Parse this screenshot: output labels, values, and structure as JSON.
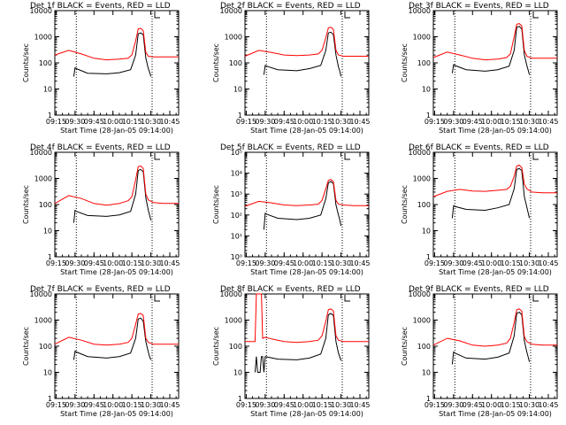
{
  "colors": {
    "events": "#000000",
    "lld": "#ff0000",
    "axes": "#000000",
    "background": "#ffffff"
  },
  "chart_data": [
    {
      "type": "line",
      "title": "Det 1f BLACK = Events, RED = LLD",
      "xlabel": "Start Time (28-Jan-05 09:14:00)",
      "ylabel": "Counts/sec",
      "ylog": true,
      "ylim": [
        1,
        10000
      ],
      "yticks_text": [
        "1",
        "10",
        "100",
        "1000",
        "10000"
      ],
      "xticks_text": [
        "09:15",
        "09:30",
        "09:45",
        "10:00",
        "10:15",
        "10:30",
        "10:45"
      ],
      "x_range": [
        "09:14",
        "10:52"
      ],
      "markers": [
        "09:31",
        "10:31"
      ],
      "grid": false,
      "series": [
        {
          "name": "BLACK = Events",
          "color": "#000000",
          "x": [
            "09:29",
            "09:30",
            "09:31",
            "09:40",
            "09:55",
            "10:05",
            "10:14",
            "10:18",
            "10:20",
            "10:22",
            "10:24",
            "10:26",
            "10:28",
            "10:29",
            "10:30"
          ],
          "values": [
            30,
            65,
            60,
            40,
            38,
            42,
            55,
            200,
            1300,
            1400,
            1200,
            150,
            60,
            45,
            30
          ]
        },
        {
          "name": "RED = LLD",
          "color": "#ff0000",
          "x": [
            "09:14",
            "09:25",
            "09:35",
            "09:45",
            "09:55",
            "10:05",
            "10:12",
            "10:15",
            "10:18",
            "10:20",
            "10:22",
            "10:24",
            "10:26",
            "10:28",
            "10:32",
            "10:40",
            "10:52"
          ],
          "values": [
            200,
            300,
            220,
            150,
            130,
            140,
            150,
            200,
            700,
            2000,
            2100,
            1700,
            250,
            180,
            170,
            170,
            170
          ]
        }
      ]
    },
    {
      "type": "line",
      "title": "Det 2f BLACK = Events, RED = LLD",
      "xlabel": "Start Time (28-Jan-05 09:14:00)",
      "ylabel": "Counts/sec",
      "ylog": true,
      "ylim": [
        1,
        10000
      ],
      "yticks_text": [
        "1",
        "10",
        "100",
        "1000",
        "10000"
      ],
      "xticks_text": [
        "09:15",
        "09:30",
        "09:45",
        "10:00",
        "10:15",
        "10:30",
        "10:45"
      ],
      "x_range": [
        "09:14",
        "10:52"
      ],
      "markers": [
        "09:31",
        "10:31"
      ],
      "grid": false,
      "series": [
        {
          "name": "BLACK = Events",
          "color": "#000000",
          "x": [
            "09:29",
            "09:30",
            "09:31",
            "09:40",
            "09:55",
            "10:05",
            "10:14",
            "10:18",
            "10:20",
            "10:22",
            "10:24",
            "10:26",
            "10:28",
            "10:29",
            "10:30"
          ],
          "values": [
            35,
            80,
            75,
            55,
            50,
            60,
            80,
            300,
            1400,
            1500,
            1200,
            200,
            70,
            50,
            30
          ]
        },
        {
          "name": "RED = LLD",
          "color": "#ff0000",
          "x": [
            "09:14",
            "09:25",
            "09:35",
            "09:45",
            "09:55",
            "10:05",
            "10:12",
            "10:15",
            "10:18",
            "10:20",
            "10:22",
            "10:24",
            "10:26",
            "10:28",
            "10:32",
            "10:40",
            "10:52"
          ],
          "values": [
            180,
            300,
            250,
            200,
            190,
            200,
            220,
            300,
            900,
            2200,
            2300,
            1900,
            300,
            200,
            180,
            180,
            180
          ]
        }
      ]
    },
    {
      "type": "line",
      "title": "Det 3f BLACK = Events, RED = LLD",
      "xlabel": "Start Time (28-Jan-05 09:14:00)",
      "ylabel": "Counts/sec",
      "ylog": true,
      "ylim": [
        1,
        10000
      ],
      "yticks_text": [
        "1",
        "10",
        "100",
        "1000",
        "10000"
      ],
      "xticks_text": [
        "09:15",
        "09:30",
        "09:45",
        "10:00",
        "10:15",
        "10:30",
        "10:45"
      ],
      "x_range": [
        "09:14",
        "10:52"
      ],
      "markers": [
        "09:31",
        "10:31"
      ],
      "grid": false,
      "series": [
        {
          "name": "BLACK = Events",
          "color": "#000000",
          "x": [
            "09:29",
            "09:30",
            "09:31",
            "09:40",
            "09:55",
            "10:05",
            "10:14",
            "10:18",
            "10:20",
            "10:22",
            "10:24",
            "10:26",
            "10:28",
            "10:29",
            "10:30"
          ],
          "values": [
            40,
            85,
            80,
            55,
            48,
            55,
            75,
            300,
            2300,
            2500,
            2000,
            200,
            80,
            55,
            35
          ]
        },
        {
          "name": "RED = LLD",
          "color": "#ff0000",
          "x": [
            "09:14",
            "09:25",
            "09:35",
            "09:45",
            "09:55",
            "10:05",
            "10:12",
            "10:15",
            "10:18",
            "10:20",
            "10:22",
            "10:24",
            "10:26",
            "10:28",
            "10:32",
            "10:40",
            "10:52"
          ],
          "values": [
            160,
            260,
            200,
            150,
            130,
            140,
            160,
            220,
            1000,
            3000,
            3200,
            2600,
            300,
            180,
            150,
            150,
            150
          ]
        }
      ]
    },
    {
      "type": "line",
      "title": "Det 4f BLACK = Events, RED = LLD",
      "xlabel": "Start Time (28-Jan-05 09:14:00)",
      "ylabel": "Counts/sec",
      "ylog": true,
      "ylim": [
        1,
        10000
      ],
      "yticks_text": [
        "1",
        "10",
        "100",
        "1000",
        "10000"
      ],
      "xticks_text": [
        "09:15",
        "09:30",
        "09:45",
        "10:00",
        "10:15",
        "10:30",
        "10:45"
      ],
      "x_range": [
        "09:14",
        "10:52"
      ],
      "markers": [
        "09:31",
        "10:31"
      ],
      "grid": false,
      "series": [
        {
          "name": "BLACK = Events",
          "color": "#000000",
          "x": [
            "09:29",
            "09:30",
            "09:31",
            "09:40",
            "09:55",
            "10:05",
            "10:14",
            "10:18",
            "10:20",
            "10:22",
            "10:24",
            "10:26",
            "10:28",
            "10:29",
            "10:30"
          ],
          "values": [
            20,
            60,
            55,
            38,
            35,
            40,
            55,
            250,
            2000,
            2200,
            1800,
            180,
            60,
            40,
            25
          ]
        },
        {
          "name": "RED = LLD",
          "color": "#ff0000",
          "x": [
            "09:14",
            "09:25",
            "09:35",
            "09:45",
            "09:55",
            "10:05",
            "10:12",
            "10:15",
            "10:18",
            "10:20",
            "10:22",
            "10:24",
            "10:26",
            "10:28",
            "10:32",
            "10:40",
            "10:52"
          ],
          "values": [
            110,
            220,
            170,
            110,
            95,
            110,
            140,
            200,
            900,
            2800,
            3000,
            2400,
            250,
            150,
            120,
            110,
            110
          ]
        }
      ]
    },
    {
      "type": "line",
      "title": "Det 5f BLACK = Events, RED = LLD",
      "xlabel": "Start Time (28-Jan-05 09:14:00)",
      "ylabel": "Counts/sec",
      "ylog": true,
      "ylim": [
        1,
        100000
      ],
      "yticks_text": [
        "10⁰",
        "10¹",
        "10²",
        "10³",
        "10⁴",
        "10⁵"
      ],
      "xticks_text": [
        "09:15",
        "09:30",
        "09:45",
        "10:00",
        "10:15",
        "10:30",
        "10:45"
      ],
      "x_range": [
        "09:14",
        "10:52"
      ],
      "markers": [
        "09:31",
        "10:31"
      ],
      "grid": false,
      "series": [
        {
          "name": "BLACK = Events",
          "color": "#000000",
          "x": [
            "09:29",
            "09:30",
            "09:31",
            "09:40",
            "09:55",
            "10:05",
            "10:14",
            "10:18",
            "10:20",
            "10:22",
            "10:24",
            "10:26",
            "10:28",
            "10:29",
            "10:30"
          ],
          "values": [
            20,
            120,
            110,
            70,
            60,
            70,
            100,
            600,
            3500,
            4000,
            3200,
            300,
            100,
            60,
            30
          ]
        },
        {
          "name": "RED = LLD",
          "color": "#ff0000",
          "x": [
            "09:14",
            "09:25",
            "09:35",
            "09:45",
            "09:55",
            "10:05",
            "10:12",
            "10:15",
            "10:18",
            "10:20",
            "10:22",
            "10:24",
            "10:26",
            "10:28",
            "10:32",
            "10:40",
            "10:52"
          ],
          "values": [
            260,
            450,
            380,
            300,
            280,
            300,
            330,
            500,
            1800,
            4500,
            5000,
            4000,
            500,
            330,
            300,
            280,
            280
          ]
        }
      ]
    },
    {
      "type": "line",
      "title": "Det 6f BLACK = Events, RED = LLD",
      "xlabel": "Start Time (28-Jan-05 09:14:00)",
      "ylabel": "Counts/sec",
      "ylog": true,
      "ylim": [
        1,
        10000
      ],
      "yticks_text": [
        "1",
        "10",
        "100",
        "1000",
        "10000"
      ],
      "xticks_text": [
        "09:15",
        "09:30",
        "09:45",
        "10:00",
        "10:15",
        "10:30",
        "10:45"
      ],
      "x_range": [
        "09:14",
        "10:52"
      ],
      "markers": [
        "09:31",
        "10:31"
      ],
      "grid": false,
      "series": [
        {
          "name": "BLACK = Events",
          "color": "#000000",
          "x": [
            "09:29",
            "09:30",
            "09:31",
            "09:40",
            "09:55",
            "10:05",
            "10:14",
            "10:18",
            "10:20",
            "10:22",
            "10:24",
            "10:26",
            "10:28",
            "10:29",
            "10:30"
          ],
          "values": [
            30,
            90,
            85,
            65,
            60,
            75,
            100,
            400,
            2200,
            2400,
            2000,
            200,
            80,
            50,
            30
          ]
        },
        {
          "name": "RED = LLD",
          "color": "#ff0000",
          "x": [
            "09:14",
            "09:25",
            "09:35",
            "09:45",
            "09:55",
            "10:05",
            "10:12",
            "10:15",
            "10:18",
            "10:20",
            "10:22",
            "10:24",
            "10:26",
            "10:28",
            "10:32",
            "10:40",
            "10:52"
          ],
          "values": [
            200,
            320,
            380,
            330,
            320,
            350,
            380,
            500,
            1200,
            3000,
            3200,
            2600,
            600,
            400,
            300,
            280,
            280
          ]
        }
      ]
    },
    {
      "type": "line",
      "title": "Det 7f BLACK = Events, RED = LLD",
      "xlabel": "Start Time (28-Jan-05 09:14:00)",
      "ylabel": "Counts/sec",
      "ylog": true,
      "ylim": [
        1,
        10000
      ],
      "yticks_text": [
        "1",
        "10",
        "100",
        "1000",
        "10000"
      ],
      "xticks_text": [
        "09:15",
        "09:30",
        "09:45",
        "10:00",
        "10:15",
        "10:30",
        "10:45"
      ],
      "x_range": [
        "09:14",
        "10:52"
      ],
      "markers": [
        "09:31",
        "10:31"
      ],
      "grid": false,
      "series": [
        {
          "name": "BLACK = Events",
          "color": "#000000",
          "x": [
            "09:29",
            "09:30",
            "09:31",
            "09:40",
            "09:55",
            "10:05",
            "10:14",
            "10:18",
            "10:20",
            "10:22",
            "10:24",
            "10:26",
            "10:28",
            "10:29",
            "10:30"
          ],
          "values": [
            30,
            65,
            60,
            40,
            35,
            40,
            55,
            200,
            1100,
            1200,
            900,
            150,
            60,
            40,
            30
          ]
        },
        {
          "name": "RED = LLD",
          "color": "#ff0000",
          "x": [
            "09:14",
            "09:25",
            "09:35",
            "09:45",
            "09:55",
            "10:05",
            "10:12",
            "10:15",
            "10:18",
            "10:20",
            "10:22",
            "10:24",
            "10:26",
            "10:28",
            "10:32",
            "10:40",
            "10:52"
          ],
          "values": [
            120,
            220,
            170,
            120,
            110,
            120,
            140,
            200,
            700,
            1700,
            1800,
            1500,
            200,
            140,
            120,
            120,
            120
          ]
        }
      ]
    },
    {
      "type": "line",
      "title": "Det 8f BLACK = Events, RED = LLD",
      "xlabel": "Start Time (28-Jan-05 09:14:00)",
      "ylabel": "Counts/sec",
      "ylog": true,
      "ylim": [
        1,
        10000
      ],
      "yticks_text": [
        "1",
        "10",
        "100",
        "1000",
        "10000"
      ],
      "xticks_text": [
        "09:15",
        "09:30",
        "09:45",
        "10:00",
        "10:15",
        "10:30",
        "10:45"
      ],
      "x_range": [
        "09:14",
        "10:52"
      ],
      "markers": [
        "09:31",
        "10:31"
      ],
      "grid": false,
      "series": [
        {
          "name": "BLACK = Events",
          "color": "#000000",
          "x": [
            "09:22",
            "09:23",
            "09:24",
            "09:26",
            "09:27",
            "09:28",
            "09:29",
            "09:30",
            "09:40",
            "09:55",
            "10:05",
            "10:14",
            "10:18",
            "10:20",
            "10:22",
            "10:24",
            "10:26",
            "10:28",
            "10:29",
            "10:30"
          ],
          "values": [
            10,
            40,
            10,
            10,
            40,
            40,
            10,
            40,
            32,
            30,
            35,
            50,
            200,
            1600,
            1800,
            1500,
            150,
            55,
            40,
            28
          ]
        },
        {
          "name": "RED = LLD",
          "color": "#ff0000",
          "x": [
            "09:14",
            "09:22",
            "09:23",
            "09:27",
            "09:28",
            "09:30",
            "09:35",
            "09:45",
            "09:55",
            "10:05",
            "10:12",
            "10:15",
            "10:18",
            "10:20",
            "10:22",
            "10:24",
            "10:26",
            "10:28",
            "10:32",
            "10:40",
            "10:52"
          ],
          "values": [
            150,
            150,
            10000,
            10000,
            200,
            220,
            190,
            150,
            140,
            150,
            170,
            250,
            900,
            2500,
            2700,
            2200,
            250,
            170,
            150,
            150,
            150
          ]
        }
      ]
    },
    {
      "type": "line",
      "title": "Det 9f BLACK = Events, RED = LLD",
      "xlabel": "Start Time (28-Jan-05 09:14:00)",
      "ylabel": "Counts/sec",
      "ylog": true,
      "ylim": [
        1,
        10000
      ],
      "yticks_text": [
        "1",
        "10",
        "100",
        "1000",
        "10000"
      ],
      "xticks_text": [
        "09:15",
        "09:30",
        "09:45",
        "10:00",
        "10:15",
        "10:30",
        "10:45"
      ],
      "x_range": [
        "09:14",
        "10:52"
      ],
      "markers": [
        "09:31",
        "10:31"
      ],
      "grid": false,
      "series": [
        {
          "name": "BLACK = Events",
          "color": "#000000",
          "x": [
            "09:29",
            "09:30",
            "09:31",
            "09:40",
            "09:55",
            "10:05",
            "10:14",
            "10:18",
            "10:20",
            "10:22",
            "10:24",
            "10:26",
            "10:28",
            "10:29",
            "10:30"
          ],
          "values": [
            20,
            60,
            55,
            35,
            32,
            38,
            55,
            250,
            1800,
            2000,
            1600,
            160,
            60,
            40,
            25
          ]
        },
        {
          "name": "RED = LLD",
          "color": "#ff0000",
          "x": [
            "09:14",
            "09:25",
            "09:35",
            "09:45",
            "09:55",
            "10:05",
            "10:12",
            "10:15",
            "10:18",
            "10:20",
            "10:22",
            "10:24",
            "10:26",
            "10:28",
            "10:32",
            "10:40",
            "10:52"
          ],
          "values": [
            110,
            200,
            160,
            110,
            100,
            110,
            130,
            200,
            800,
            2500,
            2700,
            2200,
            230,
            150,
            120,
            110,
            110
          ]
        }
      ]
    }
  ]
}
